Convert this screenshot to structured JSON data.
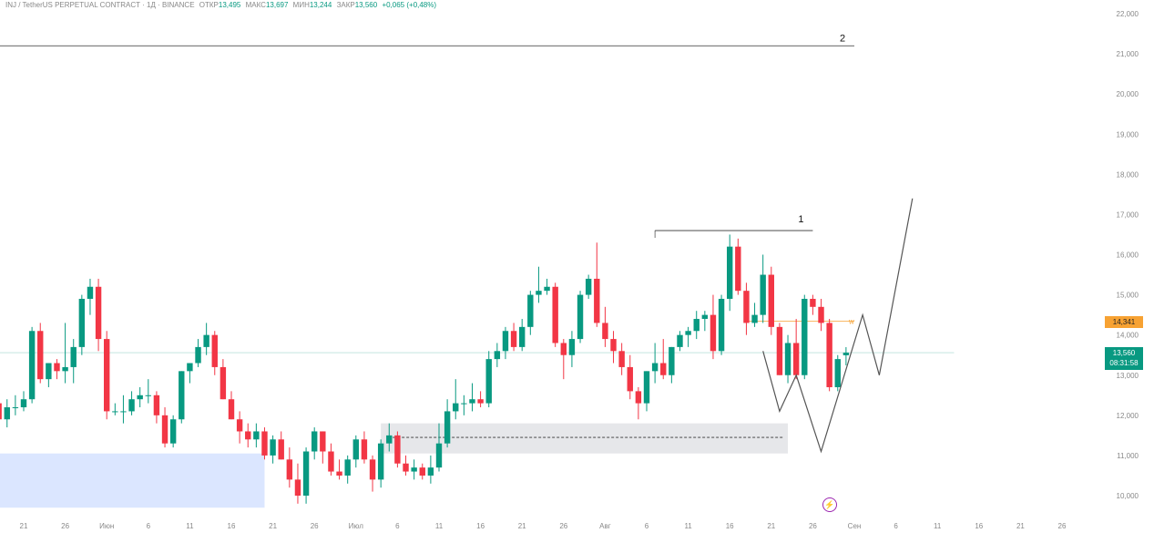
{
  "legend": {
    "symbol": "INJ / TetherUS PERPETUAL CONTRACT · 1Д · BINANCE",
    "open_label": "ОТКР",
    "open": "13,495",
    "high_label": "МАКС",
    "high": "13,697",
    "low_label": "МИН",
    "low": "13,244",
    "close_label": "ЗАКР",
    "close": "13,560",
    "change": "+0,065 (+0,48%)"
  },
  "price_labels": {
    "level": "14,341",
    "current": "13,560",
    "countdown": "08:31:58"
  },
  "annotations": {
    "label_1": "1",
    "label_2": "2",
    "alert_marker": "w"
  },
  "colors": {
    "up": "#089981",
    "down": "#f23645",
    "level": "#f7a233",
    "zone_blue": "#dbe6ff",
    "zone_gray": "#e6e7ea",
    "projection": "#555555"
  },
  "icons": {
    "bottom_marker": "lightning-icon"
  },
  "chart_data": {
    "type": "candlestick",
    "title": "INJ / TetherUS PERPETUAL CONTRACT · 1Д · BINANCE",
    "ylim": [
      9.7,
      22.3
    ],
    "y_ticks": [
      "10,000",
      "11,000",
      "12,000",
      "13,000",
      "14,000",
      "15,000",
      "16,000",
      "17,000",
      "18,000",
      "19,000",
      "20,000",
      "21,000",
      "22,000"
    ],
    "x_ticks": [
      "21",
      "26",
      "Июн",
      "6",
      "11",
      "16",
      "21",
      "26",
      "Июл",
      "6",
      "11",
      "16",
      "21",
      "26",
      "Авг",
      "6",
      "11",
      "16",
      "21",
      "26",
      "Сен",
      "6",
      "11",
      "16",
      "21",
      "26"
    ],
    "tick_spacing_days": 5,
    "first_tick_day": 0,
    "candles_start_day": -3,
    "ohlc": [
      [
        12.3,
        12.4,
        11.9,
        11.9
      ],
      [
        11.9,
        12.4,
        11.7,
        12.2
      ],
      [
        12.2,
        12.5,
        12.0,
        12.2
      ],
      [
        12.2,
        12.6,
        12.1,
        12.4
      ],
      [
        12.4,
        14.2,
        12.3,
        14.1
      ],
      [
        14.1,
        14.3,
        12.8,
        12.9
      ],
      [
        12.9,
        13.3,
        12.7,
        13.3
      ],
      [
        13.3,
        13.4,
        12.9,
        13.1
      ],
      [
        13.1,
        14.3,
        12.8,
        13.2
      ],
      [
        13.2,
        13.9,
        12.8,
        13.7
      ],
      [
        13.7,
        15.0,
        13.5,
        14.9
      ],
      [
        14.9,
        15.4,
        14.5,
        15.2
      ],
      [
        15.2,
        15.4,
        13.6,
        13.9
      ],
      [
        13.9,
        14.1,
        11.9,
        12.1
      ],
      [
        12.1,
        12.3,
        12.0,
        12.1
      ],
      [
        12.1,
        12.5,
        11.8,
        12.1
      ],
      [
        12.1,
        12.6,
        12.0,
        12.4
      ],
      [
        12.4,
        12.7,
        12.2,
        12.5
      ],
      [
        12.5,
        12.9,
        12.3,
        12.5
      ],
      [
        12.5,
        12.6,
        11.8,
        12.0
      ],
      [
        12.0,
        12.2,
        11.2,
        11.3
      ],
      [
        11.3,
        12.0,
        11.2,
        11.9
      ],
      [
        11.9,
        13.1,
        11.8,
        13.1
      ],
      [
        13.1,
        13.3,
        12.8,
        13.3
      ],
      [
        13.3,
        13.9,
        13.2,
        13.7
      ],
      [
        13.7,
        14.3,
        13.5,
        14.0
      ],
      [
        14.0,
        14.1,
        13.0,
        13.2
      ],
      [
        13.2,
        13.4,
        12.4,
        12.4
      ],
      [
        12.4,
        12.6,
        11.9,
        11.9
      ],
      [
        11.9,
        12.1,
        11.3,
        11.6
      ],
      [
        11.6,
        11.8,
        11.2,
        11.4
      ],
      [
        11.4,
        11.8,
        11.2,
        11.6
      ],
      [
        11.6,
        11.7,
        10.9,
        11.0
      ],
      [
        11.0,
        11.5,
        10.8,
        11.4
      ],
      [
        11.4,
        11.6,
        10.9,
        10.9
      ],
      [
        10.9,
        11.2,
        10.2,
        10.4
      ],
      [
        10.4,
        10.8,
        9.8,
        10.0
      ],
      [
        10.0,
        11.2,
        9.8,
        11.1
      ],
      [
        11.1,
        11.7,
        10.9,
        11.6
      ],
      [
        11.6,
        11.6,
        10.8,
        11.1
      ],
      [
        11.1,
        11.3,
        10.5,
        10.6
      ],
      [
        10.6,
        10.9,
        10.4,
        10.5
      ],
      [
        10.5,
        11.0,
        10.3,
        10.9
      ],
      [
        10.9,
        11.5,
        10.7,
        11.4
      ],
      [
        11.4,
        11.6,
        10.8,
        10.9
      ],
      [
        10.9,
        11.0,
        10.1,
        10.4
      ],
      [
        10.4,
        11.4,
        10.2,
        11.3
      ],
      [
        11.3,
        11.8,
        11.1,
        11.5
      ],
      [
        11.5,
        11.6,
        10.7,
        10.8
      ],
      [
        10.8,
        11.0,
        10.5,
        10.6
      ],
      [
        10.6,
        10.9,
        10.4,
        10.7
      ],
      [
        10.7,
        10.8,
        10.4,
        10.5
      ],
      [
        10.5,
        11.0,
        10.3,
        10.7
      ],
      [
        10.7,
        11.8,
        10.6,
        11.3
      ],
      [
        11.3,
        12.4,
        11.2,
        12.1
      ],
      [
        12.1,
        12.9,
        11.9,
        12.3
      ],
      [
        12.3,
        12.5,
        12.0,
        12.3
      ],
      [
        12.3,
        12.8,
        12.1,
        12.4
      ],
      [
        12.4,
        12.6,
        12.2,
        12.3
      ],
      [
        12.3,
        13.6,
        12.2,
        13.4
      ],
      [
        13.4,
        13.8,
        13.2,
        13.6
      ],
      [
        13.6,
        14.2,
        13.4,
        14.1
      ],
      [
        14.1,
        14.3,
        13.6,
        13.7
      ],
      [
        13.7,
        14.4,
        13.6,
        14.2
      ],
      [
        14.2,
        15.1,
        14.0,
        15.0
      ],
      [
        15.0,
        15.7,
        14.8,
        15.1
      ],
      [
        15.1,
        15.4,
        15.0,
        15.2
      ],
      [
        15.2,
        15.3,
        13.7,
        13.8
      ],
      [
        13.8,
        13.9,
        12.9,
        13.5
      ],
      [
        13.5,
        14.1,
        13.2,
        13.9
      ],
      [
        13.9,
        15.1,
        13.8,
        15.0
      ],
      [
        15.0,
        15.5,
        14.9,
        15.4
      ],
      [
        15.4,
        16.3,
        14.2,
        14.3
      ],
      [
        14.3,
        14.7,
        13.7,
        13.9
      ],
      [
        13.9,
        14.1,
        13.3,
        13.6
      ],
      [
        13.6,
        13.8,
        13.0,
        13.2
      ],
      [
        13.2,
        13.5,
        12.4,
        12.6
      ],
      [
        12.6,
        12.7,
        11.9,
        12.3
      ],
      [
        12.3,
        13.1,
        12.1,
        13.1
      ],
      [
        13.1,
        13.8,
        12.8,
        13.3
      ],
      [
        13.3,
        13.9,
        12.9,
        13.0
      ],
      [
        13.0,
        13.7,
        12.8,
        13.7
      ],
      [
        13.7,
        14.1,
        13.6,
        14.0
      ],
      [
        14.0,
        14.2,
        13.7,
        14.1
      ],
      [
        14.1,
        14.6,
        13.9,
        14.4
      ],
      [
        14.4,
        14.6,
        14.1,
        14.5
      ],
      [
        14.5,
        15.0,
        13.4,
        13.6
      ],
      [
        13.6,
        15.0,
        13.5,
        14.9
      ],
      [
        14.9,
        16.5,
        14.6,
        16.2
      ],
      [
        16.2,
        16.4,
        15.0,
        15.1
      ],
      [
        15.1,
        15.3,
        14.0,
        14.3
      ],
      [
        14.3,
        14.8,
        14.2,
        14.5
      ],
      [
        14.5,
        16.0,
        14.3,
        15.5
      ],
      [
        15.5,
        15.7,
        14.0,
        14.2
      ],
      [
        14.2,
        14.3,
        13.0,
        13.0
      ],
      [
        13.0,
        14.0,
        12.8,
        13.8
      ],
      [
        13.8,
        14.4,
        12.9,
        13.0
      ],
      [
        13.0,
        15.0,
        12.9,
        14.9
      ],
      [
        14.9,
        15.0,
        14.5,
        14.7
      ],
      [
        14.7,
        14.9,
        14.1,
        14.3
      ],
      [
        14.3,
        14.4,
        12.6,
        12.7
      ],
      [
        12.7,
        13.5,
        12.6,
        13.4
      ],
      [
        13.495,
        13.697,
        13.244,
        13.56
      ]
    ],
    "levels": [
      {
        "label": "1",
        "value": 16.6,
        "from_day": 76,
        "to_day": 95
      },
      {
        "label": "2",
        "value": 21.2,
        "from_day": -3,
        "to_day": 100
      },
      {
        "label": "14,341",
        "value": 14.341,
        "from_day": 87,
        "to_day": 100
      },
      {
        "label": "13,560",
        "value": 13.56,
        "from_day": -3,
        "to_day": 112
      }
    ],
    "zones": [
      {
        "day_from": -3,
        "day_to": 29,
        "low": 9.7,
        "high": 11.05
      },
      {
        "day_from": 43,
        "day_to": 92,
        "low": 11.05,
        "high": 11.8,
        "mid": 11.45
      }
    ],
    "projection": [
      [
        89,
        13.6
      ],
      [
        91,
        12.1
      ],
      [
        93,
        13.0
      ],
      [
        96,
        11.1
      ],
      [
        101,
        14.5
      ],
      [
        103,
        13.0
      ],
      [
        107,
        17.4
      ]
    ]
  }
}
